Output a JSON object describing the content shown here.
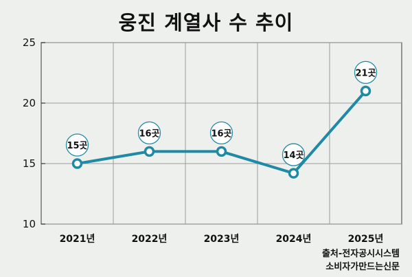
{
  "chart_data": {
    "type": "line",
    "title": "웅진 계열사 수 추이",
    "categories": [
      "2021년",
      "2022년",
      "2023년",
      "2024년",
      "2025년"
    ],
    "series": [
      {
        "values": [
          15,
          16,
          16,
          14.2,
          21
        ],
        "labels": [
          "15곳",
          "16곳",
          "16곳",
          "14곳",
          "21곳"
        ]
      }
    ],
    "ylim": [
      10,
      25
    ],
    "yticks": [
      10,
      15,
      20,
      25
    ],
    "grid": true,
    "line_color": "#1f8aa3"
  },
  "source": {
    "line1": "출처-전자공시시스템",
    "line2": "소비자가만드는신문"
  }
}
